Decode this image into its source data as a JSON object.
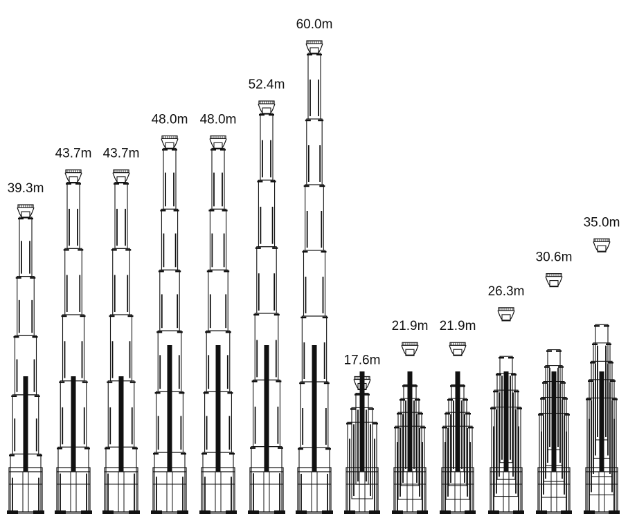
{
  "masts": [
    {
      "height_label": "39.3m",
      "height_m": 39.3
    },
    {
      "height_label": "43.7m",
      "height_m": 43.7
    },
    {
      "height_label": "43.7m",
      "height_m": 43.7
    },
    {
      "height_label": "48.0m",
      "height_m": 48.0
    },
    {
      "height_label": "48.0m",
      "height_m": 48.0
    },
    {
      "height_label": "52.4m",
      "height_m": 52.4
    },
    {
      "height_label": "60.0m",
      "height_m": 60.0
    },
    {
      "height_label": "17.6m",
      "height_m": 17.6
    },
    {
      "height_label": "21.9m",
      "height_m": 21.9
    },
    {
      "height_label": "21.9m",
      "height_m": 21.9
    },
    {
      "height_label": "26.3m",
      "height_m": 26.3
    },
    {
      "height_label": "30.6m",
      "height_m": 30.6
    },
    {
      "height_label": "35.0m",
      "height_m": 35.0
    }
  ],
  "colors": {
    "line": "#111111",
    "background": "#ffffff"
  }
}
